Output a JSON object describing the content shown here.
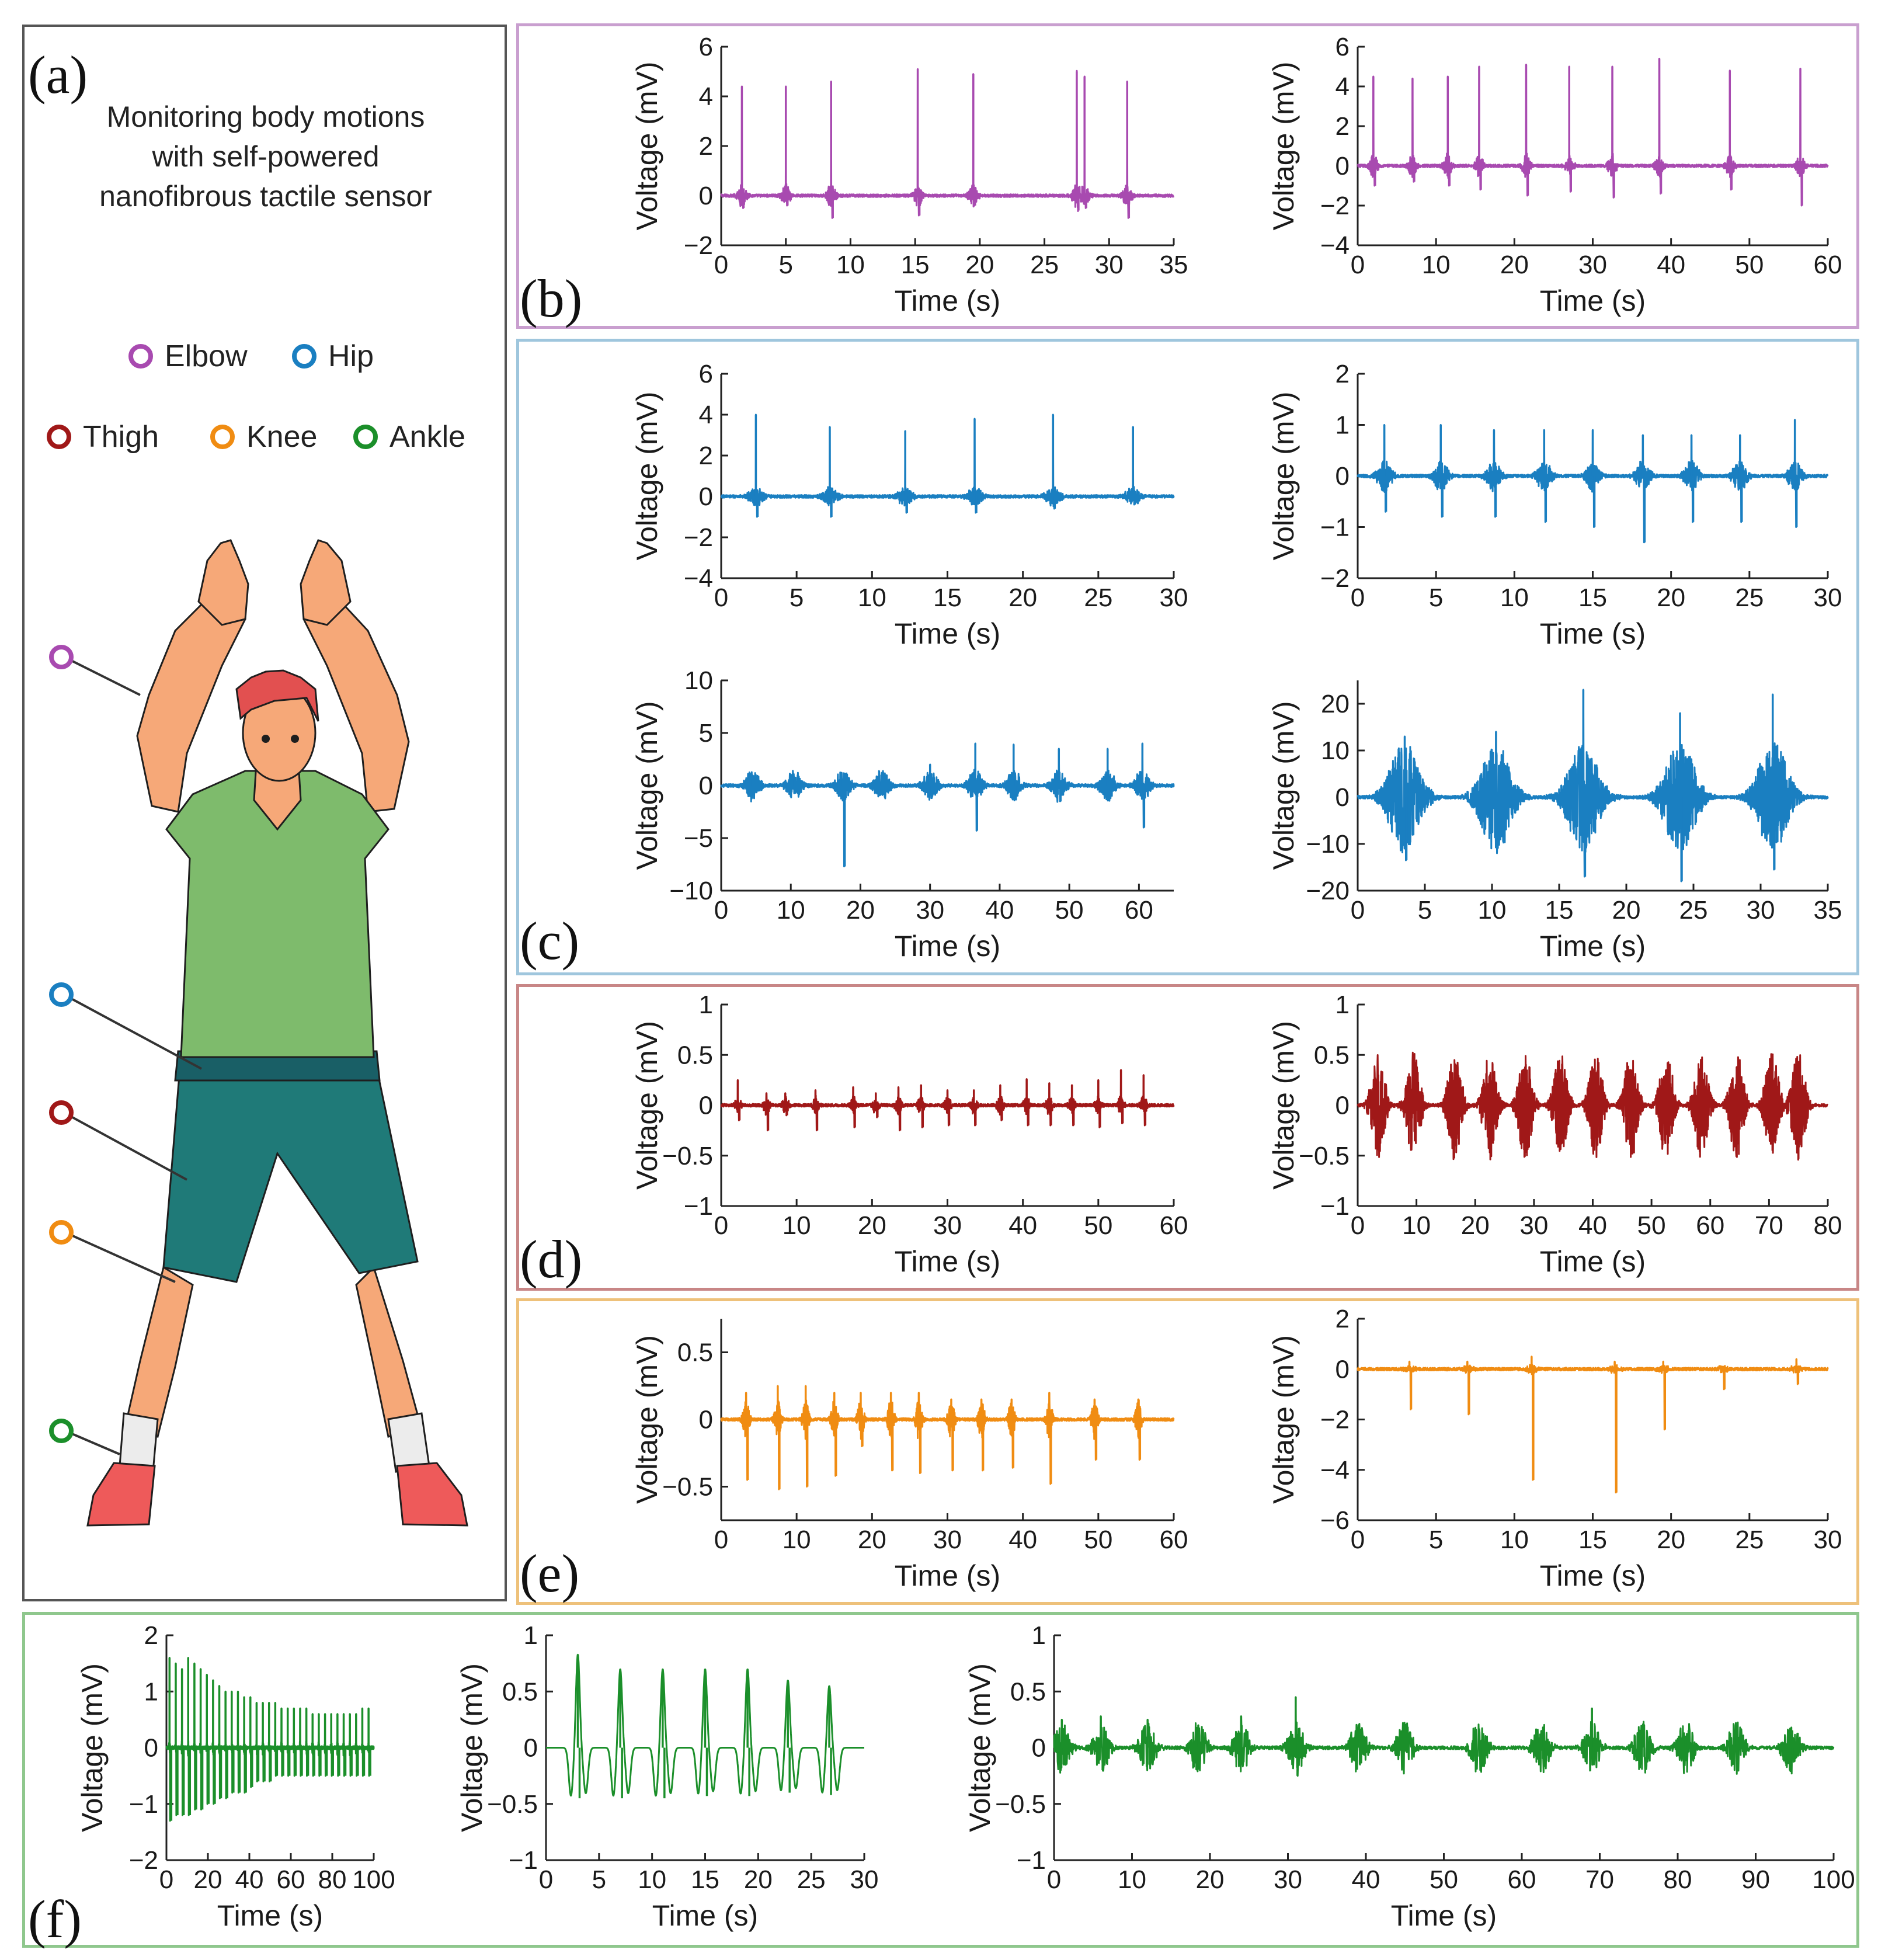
{
  "panel_labels": {
    "a": "(a)",
    "b": "(b)",
    "c": "(c)",
    "d": "(d)",
    "e": "(e)",
    "f": "(f)"
  },
  "panel_a": {
    "title_lines": [
      "Monitoring body motions",
      "with self-powered",
      "nanofibrous tactile sensor"
    ],
    "legend": [
      {
        "label": "Elbow",
        "color": "#a84ab0"
      },
      {
        "label": "Hip",
        "color": "#1a7fc1"
      },
      {
        "label": "Thigh",
        "color": "#a01818"
      },
      {
        "label": "Knee",
        "color": "#f08c12"
      },
      {
        "label": "Ankle",
        "color": "#1b8f2a"
      }
    ],
    "figure_colors": {
      "skin": "#f6a878",
      "hair": "#e25050",
      "shirt": "#7ebb6c",
      "shorts": "#1f7a78",
      "belt": "#195f66",
      "sock": "#ececec",
      "shoe": "#ee5a5a",
      "outline": "#1e1e1e"
    }
  },
  "chart_data": [
    {
      "id": "b1",
      "panel": "b",
      "type": "line",
      "color": "#a84ab0",
      "xlabel": "Time (s)",
      "ylabel": "Voltage (mV)",
      "xlim": [
        0,
        35
      ],
      "ylim": [
        -2,
        6
      ],
      "xticks": [
        0,
        5,
        10,
        15,
        20,
        25,
        30,
        35
      ],
      "yticks": [
        -2,
        0,
        2,
        4,
        6
      ],
      "events": [
        1.6,
        5.0,
        8.5,
        15.2,
        19.5,
        27.5,
        28.1,
        31.4
      ],
      "peak_values": [
        4.4,
        4.4,
        4.6,
        5.1,
        4.9,
        5.0,
        4.8,
        4.6
      ],
      "neg_values": [
        -0.5,
        -0.4,
        -0.9,
        -0.8,
        -0.4,
        -0.6,
        -0.5,
        -0.9
      ],
      "noise": 0.15,
      "burst_width": 0.8
    },
    {
      "id": "b2",
      "panel": "b",
      "type": "line",
      "color": "#a84ab0",
      "xlabel": "Time (s)",
      "ylabel": "Voltage (mV)",
      "xlim": [
        0,
        60
      ],
      "ylim": [
        -4,
        6
      ],
      "xticks": [
        0,
        10,
        20,
        30,
        40,
        50,
        60
      ],
      "yticks": [
        -4,
        -2,
        0,
        2,
        4,
        6
      ],
      "events": [
        2.0,
        7.0,
        11.5,
        15.5,
        21.5,
        27.0,
        32.5,
        38.5,
        47.5,
        56.5
      ],
      "peak_values": [
        4.5,
        4.4,
        4.5,
        5.0,
        5.1,
        5.0,
        5.0,
        5.4,
        4.8,
        4.9
      ],
      "neg_values": [
        -1.0,
        -0.8,
        -1.0,
        -1.2,
        -1.5,
        -1.3,
        -1.6,
        -1.4,
        -1.2,
        -2.0
      ],
      "noise": 0.2,
      "burst_width": 1.2
    },
    {
      "id": "c1",
      "panel": "c",
      "type": "line",
      "color": "#1a7fc1",
      "xlabel": "Time (s)",
      "ylabel": "Voltage (mV)",
      "xlim": [
        0,
        30
      ],
      "ylim": [
        -4,
        6
      ],
      "xticks": [
        0,
        5,
        10,
        15,
        20,
        25,
        30
      ],
      "yticks": [
        -4,
        -2,
        0,
        2,
        4,
        6
      ],
      "events": [
        2.3,
        7.2,
        12.2,
        16.8,
        22.0,
        27.3
      ],
      "peak_values": [
        4.0,
        3.4,
        3.2,
        3.8,
        4.0,
        3.4
      ],
      "neg_values": [
        -1.0,
        -1.0,
        -0.8,
        -0.8,
        -0.6,
        -0.4
      ],
      "noise": 0.15,
      "burst_width": 1.2
    },
    {
      "id": "c2",
      "panel": "c",
      "type": "line",
      "color": "#1a7fc1",
      "xlabel": "Time (s)",
      "ylabel": "Voltage (mV)",
      "xlim": [
        0,
        30
      ],
      "ylim": [
        -2,
        2
      ],
      "xticks": [
        0,
        5,
        10,
        15,
        20,
        25,
        30
      ],
      "yticks": [
        -2,
        -1,
        0,
        1,
        2
      ],
      "events": [
        1.7,
        5.3,
        8.7,
        11.9,
        15.0,
        18.2,
        21.3,
        24.4,
        27.9
      ],
      "peak_values": [
        1.0,
        1.0,
        0.9,
        0.9,
        0.9,
        0.8,
        0.8,
        0.8,
        1.1
      ],
      "neg_values": [
        -0.7,
        -0.8,
        -0.8,
        -0.9,
        -1.0,
        -1.3,
        -0.9,
        -0.9,
        -1.0
      ],
      "noise": 0.1,
      "burst_width": 1.1
    },
    {
      "id": "c3",
      "panel": "c",
      "type": "line",
      "color": "#1a7fc1",
      "xlabel": "Time (s)",
      "ylabel": "Voltage (mV)",
      "xlim": [
        0,
        65
      ],
      "ylim": [
        -10,
        10
      ],
      "xticks": [
        0,
        10,
        20,
        30,
        40,
        50,
        60
      ],
      "yticks": [
        -10,
        -5,
        0,
        5,
        10
      ],
      "events": [
        4.5,
        10.5,
        17.5,
        23.0,
        30.0,
        36.5,
        42.0,
        48.5,
        55.5,
        60.5
      ],
      "peak_values": [
        0.6,
        0.8,
        0.6,
        1.0,
        2.0,
        4.0,
        3.9,
        3.5,
        3.5,
        4.0
      ],
      "neg_values": [
        -0.8,
        -0.7,
        -7.7,
        -0.9,
        -1.2,
        -4.3,
        -1.0,
        -1.5,
        -1.2,
        -4.0
      ],
      "noise": 0.5,
      "burst_width": 2.5
    },
    {
      "id": "c4",
      "panel": "c",
      "type": "line",
      "color": "#1a7fc1",
      "xlabel": "Time (s)",
      "ylabel": "Voltage (mV)",
      "xlim": [
        0,
        35
      ],
      "ylim": [
        -20,
        25
      ],
      "xticks": [
        0,
        5,
        10,
        15,
        20,
        25,
        30,
        35
      ],
      "yticks": [
        -20,
        -10,
        0,
        10,
        20
      ],
      "events": [
        3.5,
        10.3,
        16.8,
        24.0,
        30.9
      ],
      "peak_values": [
        13.0,
        14.0,
        23.0,
        18.0,
        22.0
      ],
      "neg_values": [
        -13.5,
        -11.0,
        -17.0,
        -18.0,
        -15.5
      ],
      "noise": 4.0,
      "burst_width": 3.0
    },
    {
      "id": "d1",
      "panel": "d",
      "type": "line",
      "color": "#a01818",
      "xlabel": "Time (s)",
      "ylabel": "Voltage (mV)",
      "xlim": [
        0,
        60
      ],
      "ylim": [
        -1,
        1
      ],
      "xticks": [
        0,
        10,
        20,
        30,
        40,
        50,
        60
      ],
      "yticks": [
        -1,
        -0.5,
        0,
        0.5,
        1
      ],
      "events": [
        2.2,
        6.0,
        8.5,
        12.5,
        17.5,
        20.5,
        23.5,
        26.5,
        30.0,
        33.5,
        37.0,
        40.5,
        43.5,
        46.5,
        50.0,
        53.0,
        56.0
      ],
      "peak_values": [
        0.25,
        0.12,
        0.12,
        0.15,
        0.18,
        0.12,
        0.18,
        0.2,
        0.15,
        0.15,
        0.2,
        0.26,
        0.22,
        0.2,
        0.25,
        0.35,
        0.3
      ],
      "neg_values": [
        -0.15,
        -0.25,
        -0.1,
        -0.25,
        -0.22,
        -0.12,
        -0.25,
        -0.22,
        -0.2,
        -0.2,
        -0.15,
        -0.2,
        -0.2,
        -0.2,
        -0.22,
        -0.18,
        -0.2
      ],
      "noise": 0.03,
      "burst_width": 1.0
    },
    {
      "id": "d2",
      "panel": "d",
      "type": "line",
      "color": "#a01818",
      "xlabel": "Time (s)",
      "ylabel": "Voltage (mV)",
      "xlim": [
        0,
        80
      ],
      "ylim": [
        -1,
        1
      ],
      "xticks": [
        0,
        10,
        20,
        30,
        40,
        50,
        60,
        70,
        80
      ],
      "yticks": [
        -1,
        -0.5,
        0,
        0.5,
        1
      ],
      "events": [
        3.5,
        9.5,
        16.5,
        22.5,
        28.5,
        34.5,
        40.5,
        46.5,
        52.5,
        58.5,
        64.5,
        70.5,
        75.0
      ],
      "peak_values": [
        0.3,
        0.32,
        0.28,
        0.3,
        0.38,
        0.35,
        0.32,
        0.35,
        0.35,
        0.4,
        0.38,
        0.35,
        0.3
      ],
      "neg_values": [
        -0.35,
        -0.35,
        -0.4,
        -0.35,
        -0.45,
        -0.38,
        -0.4,
        -0.35,
        -0.38,
        -0.3,
        -0.38,
        -0.35,
        -0.35
      ],
      "noise": 0.18,
      "burst_width": 3.0
    },
    {
      "id": "e1",
      "panel": "e",
      "type": "line",
      "color": "#f08c12",
      "xlabel": "Time (s)",
      "ylabel": "Voltage (mV)",
      "xlim": [
        0,
        60
      ],
      "ylim": [
        -0.75,
        0.75
      ],
      "xticks": [
        0,
        10,
        20,
        30,
        40,
        50,
        60
      ],
      "yticks": [
        -0.5,
        0,
        0.5
      ],
      "events": [
        3.3,
        7.5,
        11.2,
        15.0,
        18.5,
        22.5,
        26.2,
        30.5,
        34.5,
        38.5,
        43.5,
        49.5,
        55.3
      ],
      "peak_values": [
        0.2,
        0.25,
        0.25,
        0.2,
        0.2,
        0.2,
        0.2,
        0.15,
        0.15,
        0.15,
        0.2,
        0.15,
        0.15
      ],
      "neg_values": [
        -0.45,
        -0.52,
        -0.5,
        -0.42,
        -0.2,
        -0.38,
        -0.4,
        -0.38,
        -0.38,
        -0.36,
        -0.48,
        -0.3,
        -0.3
      ],
      "noise": 0.05,
      "burst_width": 1.0
    },
    {
      "id": "e2",
      "panel": "e",
      "type": "line",
      "color": "#f08c12",
      "xlabel": "Time (s)",
      "ylabel": "Voltage (mV)",
      "xlim": [
        0,
        30
      ],
      "ylim": [
        -6,
        2
      ],
      "xticks": [
        0,
        5,
        10,
        15,
        20,
        25,
        30
      ],
      "yticks": [
        -6,
        -4,
        -2,
        0,
        2
      ],
      "events": [
        3.3,
        7.0,
        11.1,
        16.4,
        19.5,
        23.3,
        28.0
      ],
      "peak_values": [
        0.3,
        0.3,
        0.5,
        0.3,
        0.3,
        0.1,
        0.4
      ],
      "neg_values": [
        -1.6,
        -1.8,
        -4.4,
        -4.9,
        -2.4,
        -0.8,
        -0.6
      ],
      "noise": 0.05,
      "burst_width": 0.8
    },
    {
      "id": "f1",
      "panel": "f",
      "type": "line",
      "color": "#1b8f2a",
      "xlabel": "Time (s)",
      "ylabel": "Voltage (mV)",
      "xlim": [
        0,
        100
      ],
      "ylim": [
        -2,
        2
      ],
      "xticks": [
        0,
        20,
        40,
        60,
        80,
        100
      ],
      "yticks": [
        -2,
        -1,
        0,
        1,
        2
      ],
      "events": [
        1.5,
        4.5,
        7.5,
        10.5,
        13.5,
        16.5,
        19.5,
        22.5,
        25.5,
        28.5,
        31.5,
        34.5,
        37.5,
        40.5,
        43.5,
        46.5,
        49.5,
        52.5,
        55.5,
        58.5,
        61.5,
        64.5,
        67.5,
        70.5,
        73.5,
        76.5,
        79.5,
        82.5,
        85.5,
        88.5,
        91.5,
        94.5,
        97.5
      ],
      "peak_values": [
        1.6,
        1.5,
        1.4,
        1.6,
        1.5,
        1.4,
        1.3,
        1.2,
        1.1,
        1.0,
        1.0,
        1.0,
        0.9,
        0.9,
        0.8,
        0.8,
        0.8,
        0.8,
        0.7,
        0.7,
        0.7,
        0.7,
        0.7,
        0.6,
        0.6,
        0.6,
        0.6,
        0.6,
        0.6,
        0.6,
        0.6,
        0.7,
        0.7
      ],
      "neg_values": [
        -1.3,
        -1.2,
        -1.2,
        -1.2,
        -1.1,
        -1.1,
        -1.0,
        -1.0,
        -0.9,
        -0.9,
        -0.8,
        -0.8,
        -0.8,
        -0.7,
        -0.6,
        -0.6,
        -0.6,
        -0.5,
        -0.5,
        -0.5,
        -0.5,
        -0.5,
        -0.5,
        -0.5,
        -0.5,
        -0.5,
        -0.5,
        -0.5,
        -0.5,
        -0.5,
        -0.5,
        -0.5,
        -0.5
      ],
      "noise": 0.05,
      "burst_width": 0.6
    },
    {
      "id": "f2",
      "panel": "f",
      "type": "line",
      "color": "#1b8f2a",
      "xlabel": "Time (s)",
      "ylabel": "Voltage (mV)",
      "xlim": [
        0,
        30
      ],
      "ylim": [
        -1,
        1
      ],
      "xticks": [
        0,
        5,
        10,
        15,
        20,
        25,
        30
      ],
      "yticks": [
        -1,
        -0.5,
        0,
        0.5,
        1
      ],
      "events": [
        3.0,
        7.0,
        11.0,
        15.0,
        19.0,
        22.8,
        26.7
      ],
      "peak_values": [
        0.83,
        0.7,
        0.7,
        0.7,
        0.7,
        0.6,
        0.55
      ],
      "neg_values": [
        -0.45,
        -0.45,
        -0.45,
        -0.43,
        -0.43,
        -0.4,
        -0.42
      ],
      "noise": 0.0,
      "burst_width": 0.6
    },
    {
      "id": "f3",
      "panel": "f",
      "type": "line",
      "color": "#1b8f2a",
      "xlabel": "Time (s)",
      "ylabel": "Voltage (mV)",
      "xlim": [
        0,
        100
      ],
      "ylim": [
        -1,
        1
      ],
      "xticks": [
        0,
        10,
        20,
        30,
        40,
        50,
        60,
        70,
        80,
        90,
        100
      ],
      "yticks": [
        -1,
        -0.5,
        0,
        0.5,
        1
      ],
      "events": [
        1.0,
        6.0,
        12.0,
        18.5,
        24.0,
        31.0,
        39.0,
        45.0,
        54.5,
        62.5,
        69.0,
        75.5,
        81.0,
        87.5,
        94.5
      ],
      "peak_values": [
        0.25,
        0.28,
        0.25,
        0.2,
        0.28,
        0.45,
        0.15,
        0.05,
        0.1,
        0.15,
        0.35,
        0.1,
        0.1,
        0.1,
        0.08
      ],
      "neg_values": [
        -0.15,
        -0.2,
        -0.15,
        -0.12,
        -0.15,
        -0.25,
        -0.15,
        -0.04,
        -0.08,
        -0.1,
        -0.15,
        -0.08,
        -0.08,
        -0.08,
        -0.06
      ],
      "noise": 0.08,
      "burst_width": 2.5
    }
  ]
}
